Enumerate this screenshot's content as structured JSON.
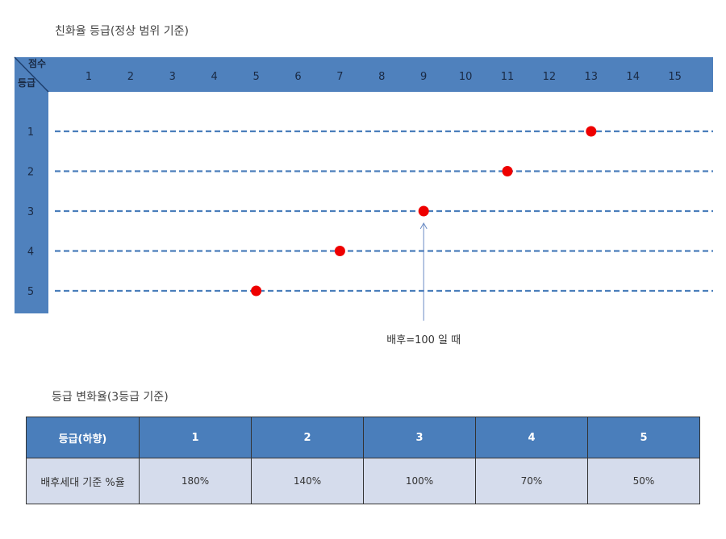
{
  "title_top": "친화율 등급(정상 범위 기준)",
  "title_bottom": "등급 변화율(3등급 기준)",
  "chart_data": {
    "type": "scatter",
    "header_corner": {
      "top": "점수",
      "bottom": "등급"
    },
    "x_ticks": [
      "1",
      "2",
      "3",
      "4",
      "5",
      "6",
      "7",
      "8",
      "9",
      "10",
      "11",
      "12",
      "13",
      "14",
      "15"
    ],
    "y_ticks": [
      "1",
      "2",
      "3",
      "4",
      "5"
    ],
    "points": [
      {
        "grade": 1,
        "score": 13
      },
      {
        "grade": 2,
        "score": 11
      },
      {
        "grade": 3,
        "score": 9
      },
      {
        "grade": 4,
        "score": 7
      },
      {
        "grade": 5,
        "score": 5
      }
    ],
    "annotation": {
      "text": "배후=100 일 때",
      "target_grade": 3,
      "target_score": 9
    },
    "colors": {
      "header": "#4f81bd",
      "line": "#4a7ebb",
      "point": "#ee0000"
    }
  },
  "table": {
    "header_label": "등급(하향)",
    "grades": [
      "1",
      "2",
      "3",
      "4",
      "5"
    ],
    "row_label": "배후세대 기준 %율",
    "values": [
      "180%",
      "140%",
      "100%",
      "70%",
      "50%"
    ]
  }
}
